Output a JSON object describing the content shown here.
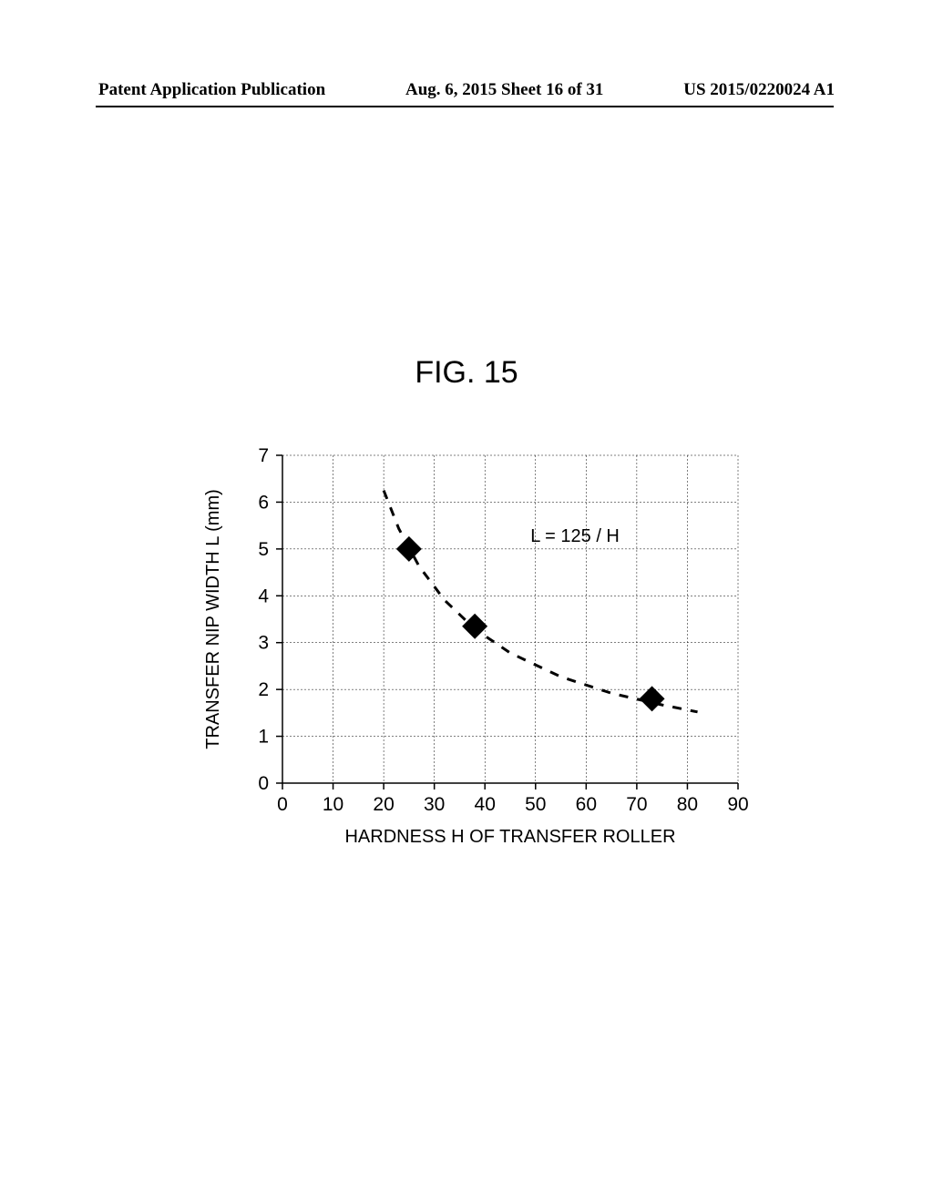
{
  "header": {
    "left": "Patent Application Publication",
    "center": "Aug. 6, 2015  Sheet 16 of 31",
    "right": "US 2015/0220024 A1"
  },
  "figure": {
    "label": "FIG. 15"
  },
  "chart": {
    "type": "scatter-with-curve",
    "xlabel": "HARDNESS H OF TRANSFER ROLLER",
    "ylabel": "TRANSFER NIP WIDTH L (mm)",
    "annotation": "L = 125 / H",
    "xlim": [
      0,
      90
    ],
    "ylim": [
      0,
      7
    ],
    "xtick_step": 10,
    "ytick_step": 1,
    "xticks": [
      0,
      10,
      20,
      30,
      40,
      50,
      60,
      70,
      80,
      90
    ],
    "yticks": [
      0,
      1,
      2,
      3,
      4,
      5,
      6,
      7
    ],
    "background_color": "#ffffff",
    "grid_color": "#000000",
    "grid_dash": "2,2",
    "curve_color": "#000000",
    "curve_dash": "10,10",
    "curve_width": 3,
    "marker_style": "diamond",
    "marker_color": "#000000",
    "marker_size": 14,
    "data_points": [
      {
        "x": 25,
        "y": 5.0
      },
      {
        "x": 38,
        "y": 3.35
      },
      {
        "x": 73,
        "y": 1.8
      }
    ],
    "curve_samples": [
      {
        "x": 20,
        "y": 6.25
      },
      {
        "x": 23,
        "y": 5.43
      },
      {
        "x": 27,
        "y": 4.63
      },
      {
        "x": 32,
        "y": 3.91
      },
      {
        "x": 38,
        "y": 3.29
      },
      {
        "x": 45,
        "y": 2.78
      },
      {
        "x": 55,
        "y": 2.27
      },
      {
        "x": 65,
        "y": 1.92
      },
      {
        "x": 75,
        "y": 1.67
      },
      {
        "x": 82,
        "y": 1.52
      }
    ],
    "label_fontsize": 20,
    "tick_fontsize": 21
  }
}
